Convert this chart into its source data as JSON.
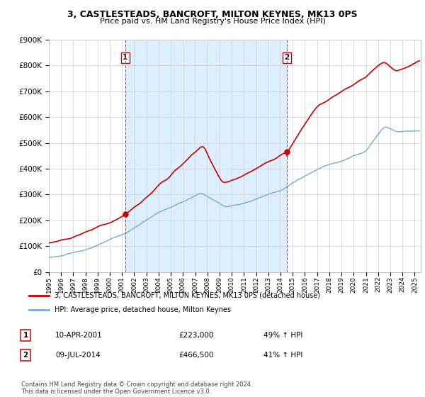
{
  "title": "3, CASTLESTEADS, BANCROFT, MILTON KEYNES, MK13 0PS",
  "subtitle": "Price paid vs. HM Land Registry's House Price Index (HPI)",
  "legend_line1": "3, CASTLESTEADS, BANCROFT, MILTON KEYNES, MK13 0PS (detached house)",
  "legend_line2": "HPI: Average price, detached house, Milton Keynes",
  "note1_num": "1",
  "note1_date": "10-APR-2001",
  "note1_price": "£223,000",
  "note1_hpi": "49% ↑ HPI",
  "note2_num": "2",
  "note2_date": "09-JUL-2014",
  "note2_price": "£466,500",
  "note2_hpi": "41% ↑ HPI",
  "footnote": "Contains HM Land Registry data © Crown copyright and database right 2024.\nThis data is licensed under the Open Government Licence v3.0.",
  "red_color": "#cc0000",
  "blue_color": "#7aa8d4",
  "shade_color": "#ddeeff",
  "sale1_x": 2001.27,
  "sale1_y": 223000,
  "sale2_x": 2014.52,
  "sale2_y": 466500,
  "ylim": [
    0,
    900000
  ],
  "xlim": [
    1995.0,
    2025.5
  ]
}
